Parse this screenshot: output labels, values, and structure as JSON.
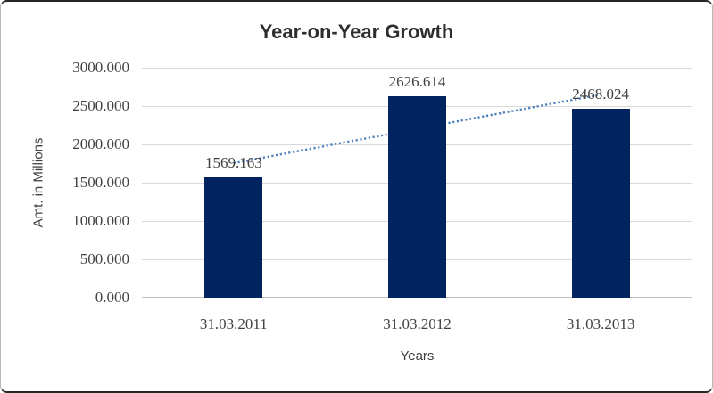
{
  "chart_data": {
    "type": "bar",
    "title": "Year-on-Year Growth",
    "categories": [
      "31.03.2011",
      "31.03.2012",
      "31.03.2013"
    ],
    "values": [
      1569.163,
      2626.614,
      2468.024
    ],
    "data_labels": [
      "1569.163",
      "2626.614",
      "2468.024"
    ],
    "xlabel": "Years",
    "ylabel": "Amt. in Millions",
    "ylim": [
      0,
      3000
    ],
    "ytick_step": 500,
    "ytick_labels_top_to_bottom": [
      "3000.000",
      "2500.000",
      "2000.000",
      "1500.000",
      "1000.000",
      "500.000",
      "0.000"
    ],
    "grid": true,
    "legend": "none",
    "bar_color": "#01235f",
    "gridline_color": "#d9d9d9",
    "label_color": "#3f3f3f",
    "trendline": {
      "type": "linear",
      "style": "dotted",
      "color": "#4d81be",
      "start_value": 1755,
      "end_value": 2650
    }
  }
}
